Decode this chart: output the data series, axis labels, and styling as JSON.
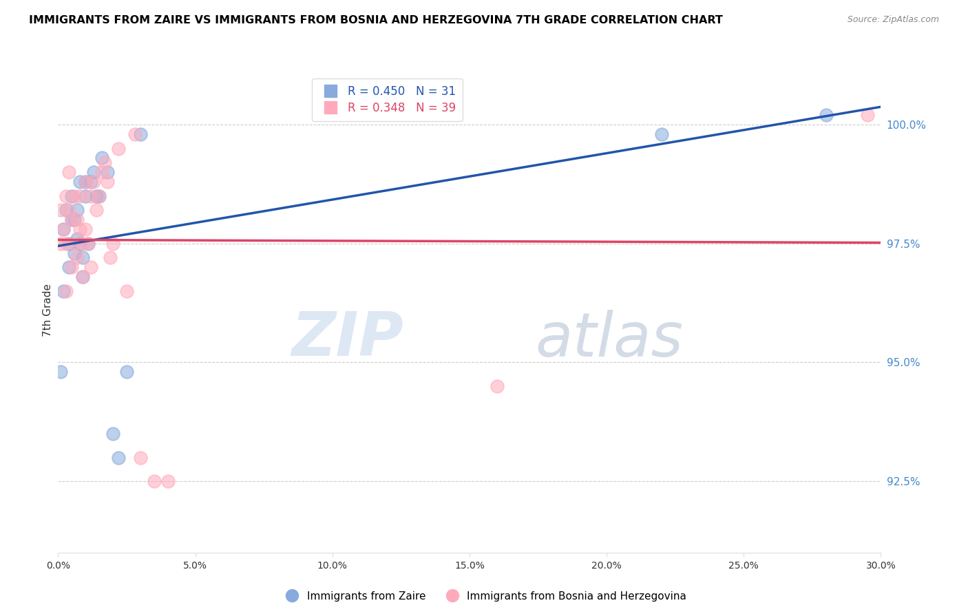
{
  "title": "IMMIGRANTS FROM ZAIRE VS IMMIGRANTS FROM BOSNIA AND HERZEGOVINA 7TH GRADE CORRELATION CHART",
  "source": "Source: ZipAtlas.com",
  "ylabel": "7th Grade",
  "ylabel_right_ticks": [
    92.5,
    95.0,
    97.5,
    100.0
  ],
  "ylabel_right_labels": [
    "92.5%",
    "95.0%",
    "97.5%",
    "100.0%"
  ],
  "xmin": 0.0,
  "xmax": 0.3,
  "ymin": 91.0,
  "ymax": 101.2,
  "legend_entry1_label": "R = 0.450   N = 31",
  "legend_entry2_label": "R = 0.348   N = 39",
  "color_blue": "#88AADD",
  "color_pink": "#FFAABB",
  "color_blue_line": "#2255AA",
  "color_pink_line": "#DD4466",
  "color_right_axis": "#4488CC",
  "watermark_zip": "ZIP",
  "watermark_atlas": "atlas",
  "zaire_x": [
    0.001,
    0.002,
    0.002,
    0.003,
    0.004,
    0.004,
    0.005,
    0.005,
    0.006,
    0.006,
    0.007,
    0.007,
    0.008,
    0.008,
    0.009,
    0.009,
    0.01,
    0.01,
    0.011,
    0.012,
    0.013,
    0.014,
    0.015,
    0.016,
    0.018,
    0.02,
    0.022,
    0.025,
    0.03,
    0.22,
    0.28
  ],
  "zaire_y": [
    94.8,
    96.5,
    97.8,
    98.2,
    97.0,
    97.5,
    98.0,
    98.5,
    97.3,
    98.0,
    97.6,
    98.2,
    97.5,
    98.8,
    96.8,
    97.2,
    98.5,
    98.8,
    97.5,
    98.8,
    99.0,
    98.5,
    98.5,
    99.3,
    99.0,
    93.5,
    93.0,
    94.8,
    99.8,
    99.8,
    100.2
  ],
  "bosnia_x": [
    0.001,
    0.001,
    0.002,
    0.003,
    0.003,
    0.003,
    0.004,
    0.004,
    0.005,
    0.005,
    0.006,
    0.006,
    0.007,
    0.007,
    0.008,
    0.008,
    0.009,
    0.009,
    0.01,
    0.01,
    0.011,
    0.012,
    0.012,
    0.013,
    0.014,
    0.015,
    0.016,
    0.017,
    0.018,
    0.019,
    0.02,
    0.022,
    0.025,
    0.028,
    0.03,
    0.035,
    0.04,
    0.16,
    0.295
  ],
  "bosnia_y": [
    97.5,
    98.2,
    97.8,
    96.5,
    97.5,
    98.5,
    98.2,
    99.0,
    97.0,
    98.0,
    97.5,
    98.5,
    97.2,
    98.0,
    97.8,
    98.5,
    96.8,
    97.5,
    97.8,
    98.8,
    97.5,
    97.0,
    98.5,
    98.8,
    98.2,
    98.5,
    99.0,
    99.2,
    98.8,
    97.2,
    97.5,
    99.5,
    96.5,
    99.8,
    93.0,
    92.5,
    92.5,
    94.5,
    100.2
  ]
}
